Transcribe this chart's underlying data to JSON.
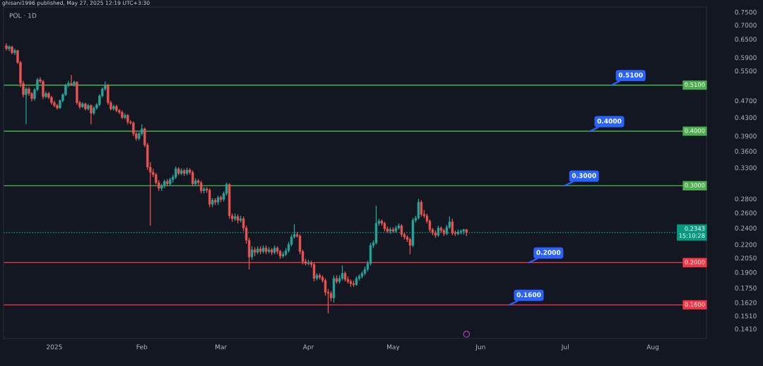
{
  "chart_data": {
    "type": "candlestick",
    "title": "POL · 1D",
    "annotations": [
      "ghisani1996 published, May 27, 2025 12:19 UTC+3:30"
    ],
    "x": [
      "2024-12-15",
      "2024-12-16",
      "2024-12-17",
      "2024-12-18",
      "2024-12-19",
      "2024-12-20",
      "2024-12-21",
      "2024-12-22",
      "2024-12-23",
      "2024-12-24",
      "2024-12-25",
      "2024-12-26",
      "2024-12-27",
      "2024-12-28",
      "2024-12-29",
      "2024-12-30",
      "2024-12-31",
      "2025-01-01",
      "2025-01-02",
      "2025-01-03",
      "2025-01-04",
      "2025-01-05",
      "2025-01-06",
      "2025-01-07",
      "2025-01-08",
      "2025-01-09",
      "2025-01-10",
      "2025-01-11",
      "2025-01-12",
      "2025-01-13",
      "2025-01-14",
      "2025-01-15",
      "2025-01-16",
      "2025-01-17",
      "2025-01-18",
      "2025-01-19",
      "2025-01-20",
      "2025-01-21",
      "2025-01-22",
      "2025-01-23",
      "2025-01-24",
      "2025-01-25",
      "2025-01-26",
      "2025-01-27",
      "2025-01-28",
      "2025-01-29",
      "2025-01-30",
      "2025-01-31",
      "2025-02-01",
      "2025-02-02",
      "2025-02-03",
      "2025-02-04",
      "2025-02-05",
      "2025-02-06",
      "2025-02-07",
      "2025-02-08",
      "2025-02-09",
      "2025-02-10",
      "2025-02-11",
      "2025-02-12",
      "2025-02-13",
      "2025-02-14",
      "2025-02-15",
      "2025-02-16",
      "2025-02-17",
      "2025-02-18",
      "2025-02-19",
      "2025-02-20",
      "2025-02-21",
      "2025-02-22",
      "2025-02-23",
      "2025-02-24",
      "2025-02-25",
      "2025-02-26",
      "2025-02-27",
      "2025-02-28",
      "2025-03-01",
      "2025-03-02",
      "2025-03-03",
      "2025-03-04",
      "2025-03-05",
      "2025-03-06",
      "2025-03-07",
      "2025-03-08",
      "2025-03-09",
      "2025-03-10",
      "2025-03-11",
      "2025-03-12",
      "2025-03-13",
      "2025-03-14",
      "2025-03-15",
      "2025-03-16",
      "2025-03-17",
      "2025-03-18",
      "2025-03-19",
      "2025-03-20",
      "2025-03-21",
      "2025-03-22",
      "2025-03-23",
      "2025-03-24",
      "2025-03-25",
      "2025-03-26",
      "2025-03-27",
      "2025-03-28",
      "2025-03-29",
      "2025-03-30",
      "2025-03-31",
      "2025-04-01",
      "2025-04-02",
      "2025-04-03",
      "2025-04-04",
      "2025-04-05",
      "2025-04-06",
      "2025-04-07",
      "2025-04-08",
      "2025-04-09",
      "2025-04-10",
      "2025-04-11",
      "2025-04-12",
      "2025-04-13",
      "2025-04-14",
      "2025-04-15",
      "2025-04-16",
      "2025-04-17",
      "2025-04-18",
      "2025-04-19",
      "2025-04-20",
      "2025-04-21",
      "2025-04-22",
      "2025-04-23",
      "2025-04-24",
      "2025-04-25",
      "2025-04-26",
      "2025-04-27",
      "2025-04-28",
      "2025-04-29",
      "2025-04-30",
      "2025-05-01",
      "2025-05-02",
      "2025-05-03",
      "2025-05-04",
      "2025-05-05",
      "2025-05-06",
      "2025-05-07",
      "2025-05-08",
      "2025-05-09",
      "2025-05-10",
      "2025-05-11",
      "2025-05-12",
      "2025-05-13",
      "2025-05-14",
      "2025-05-15",
      "2025-05-16",
      "2025-05-17",
      "2025-05-18",
      "2025-05-19",
      "2025-05-20",
      "2025-05-21",
      "2025-05-22",
      "2025-05-23",
      "2025-05-24",
      "2025-05-25",
      "2025-05-26",
      "2025-05-27"
    ],
    "ohlc": [
      [
        0.628,
        0.636,
        0.612,
        0.618
      ],
      [
        0.618,
        0.63,
        0.61,
        0.624
      ],
      [
        0.624,
        0.628,
        0.6,
        0.605
      ],
      [
        0.605,
        0.618,
        0.598,
        0.612
      ],
      [
        0.612,
        0.615,
        0.57,
        0.575
      ],
      [
        0.575,
        0.58,
        0.505,
        0.515
      ],
      [
        0.515,
        0.522,
        0.478,
        0.485
      ],
      [
        0.485,
        0.505,
        0.415,
        0.5
      ],
      [
        0.5,
        0.505,
        0.482,
        0.488
      ],
      [
        0.488,
        0.492,
        0.468,
        0.475
      ],
      [
        0.475,
        0.502,
        0.47,
        0.498
      ],
      [
        0.498,
        0.53,
        0.494,
        0.525
      ],
      [
        0.525,
        0.532,
        0.515,
        0.52
      ],
      [
        0.52,
        0.524,
        0.474,
        0.48
      ],
      [
        0.48,
        0.493,
        0.476,
        0.488
      ],
      [
        0.488,
        0.492,
        0.474,
        0.478
      ],
      [
        0.478,
        0.482,
        0.46,
        0.465
      ],
      [
        0.465,
        0.47,
        0.454,
        0.458
      ],
      [
        0.458,
        0.462,
        0.448,
        0.452
      ],
      [
        0.452,
        0.473,
        0.45,
        0.47
      ],
      [
        0.47,
        0.489,
        0.466,
        0.485
      ],
      [
        0.485,
        0.514,
        0.482,
        0.51
      ],
      [
        0.51,
        0.522,
        0.505,
        0.515
      ],
      [
        0.515,
        0.538,
        0.508,
        0.512
      ],
      [
        0.512,
        0.522,
        0.506,
        0.518
      ],
      [
        0.518,
        0.521,
        0.46,
        0.465
      ],
      [
        0.465,
        0.47,
        0.45,
        0.455
      ],
      [
        0.455,
        0.466,
        0.452,
        0.462
      ],
      [
        0.462,
        0.465,
        0.446,
        0.45
      ],
      [
        0.45,
        0.462,
        0.446,
        0.458
      ],
      [
        0.458,
        0.461,
        0.415,
        0.44
      ],
      [
        0.44,
        0.456,
        0.436,
        0.452
      ],
      [
        0.452,
        0.464,
        0.448,
        0.46
      ],
      [
        0.46,
        0.486,
        0.456,
        0.482
      ],
      [
        0.482,
        0.504,
        0.478,
        0.5
      ],
      [
        0.5,
        0.52,
        0.495,
        0.51
      ],
      [
        0.51,
        0.514,
        0.46,
        0.465
      ],
      [
        0.465,
        0.47,
        0.446,
        0.45
      ],
      [
        0.45,
        0.46,
        0.446,
        0.456
      ],
      [
        0.456,
        0.46,
        0.442,
        0.446
      ],
      [
        0.446,
        0.45,
        0.438,
        0.442
      ],
      [
        0.442,
        0.446,
        0.426,
        0.43
      ],
      [
        0.43,
        0.44,
        0.426,
        0.435
      ],
      [
        0.435,
        0.438,
        0.415,
        0.42
      ],
      [
        0.42,
        0.424,
        0.414,
        0.418
      ],
      [
        0.418,
        0.421,
        0.39,
        0.395
      ],
      [
        0.395,
        0.398,
        0.38,
        0.385
      ],
      [
        0.385,
        0.398,
        0.381,
        0.395
      ],
      [
        0.395,
        0.415,
        0.391,
        0.405
      ],
      [
        0.405,
        0.408,
        0.368,
        0.372
      ],
      [
        0.372,
        0.376,
        0.326,
        0.331
      ],
      [
        0.331,
        0.34,
        0.243,
        0.322
      ],
      [
        0.322,
        0.328,
        0.314,
        0.318
      ],
      [
        0.318,
        0.321,
        0.302,
        0.305
      ],
      [
        0.305,
        0.309,
        0.292,
        0.296
      ],
      [
        0.296,
        0.303,
        0.292,
        0.3
      ],
      [
        0.3,
        0.31,
        0.296,
        0.307
      ],
      [
        0.307,
        0.311,
        0.299,
        0.303
      ],
      [
        0.303,
        0.313,
        0.3,
        0.31
      ],
      [
        0.31,
        0.318,
        0.305,
        0.314
      ],
      [
        0.314,
        0.332,
        0.311,
        0.328
      ],
      [
        0.328,
        0.331,
        0.317,
        0.32
      ],
      [
        0.32,
        0.329,
        0.317,
        0.325
      ],
      [
        0.325,
        0.328,
        0.316,
        0.32
      ],
      [
        0.32,
        0.33,
        0.317,
        0.326
      ],
      [
        0.326,
        0.329,
        0.318,
        0.322
      ],
      [
        0.322,
        0.325,
        0.299,
        0.303
      ],
      [
        0.303,
        0.312,
        0.3,
        0.308
      ],
      [
        0.308,
        0.311,
        0.301,
        0.305
      ],
      [
        0.305,
        0.308,
        0.288,
        0.292
      ],
      [
        0.292,
        0.298,
        0.288,
        0.295
      ],
      [
        0.295,
        0.298,
        0.289,
        0.293
      ],
      [
        0.293,
        0.296,
        0.268,
        0.272
      ],
      [
        0.272,
        0.281,
        0.268,
        0.278
      ],
      [
        0.278,
        0.281,
        0.271,
        0.275
      ],
      [
        0.275,
        0.285,
        0.271,
        0.282
      ],
      [
        0.282,
        0.285,
        0.275,
        0.279
      ],
      [
        0.279,
        0.291,
        0.276,
        0.288
      ],
      [
        0.288,
        0.305,
        0.285,
        0.302
      ],
      [
        0.302,
        0.304,
        0.252,
        0.256
      ],
      [
        0.256,
        0.259,
        0.248,
        0.252
      ],
      [
        0.252,
        0.259,
        0.249,
        0.255
      ],
      [
        0.255,
        0.258,
        0.246,
        0.25
      ],
      [
        0.25,
        0.256,
        0.247,
        0.252
      ],
      [
        0.252,
        0.255,
        0.236,
        0.24
      ],
      [
        0.24,
        0.243,
        0.221,
        0.225
      ],
      [
        0.225,
        0.228,
        0.193,
        0.206
      ],
      [
        0.206,
        0.218,
        0.203,
        0.214
      ],
      [
        0.214,
        0.217,
        0.207,
        0.211
      ],
      [
        0.211,
        0.218,
        0.209,
        0.215
      ],
      [
        0.215,
        0.218,
        0.209,
        0.212
      ],
      [
        0.212,
        0.219,
        0.21,
        0.216
      ],
      [
        0.216,
        0.219,
        0.209,
        0.212
      ],
      [
        0.212,
        0.217,
        0.21,
        0.214
      ],
      [
        0.214,
        0.216,
        0.208,
        0.211
      ],
      [
        0.211,
        0.219,
        0.209,
        0.216
      ],
      [
        0.216,
        0.218,
        0.209,
        0.212
      ],
      [
        0.212,
        0.214,
        0.204,
        0.207
      ],
      [
        0.207,
        0.212,
        0.205,
        0.209
      ],
      [
        0.209,
        0.216,
        0.207,
        0.213
      ],
      [
        0.213,
        0.223,
        0.211,
        0.22
      ],
      [
        0.22,
        0.232,
        0.218,
        0.229
      ],
      [
        0.229,
        0.245,
        0.227,
        0.232
      ],
      [
        0.232,
        0.235,
        0.228,
        0.23
      ],
      [
        0.23,
        0.232,
        0.209,
        0.212
      ],
      [
        0.212,
        0.214,
        0.198,
        0.201
      ],
      [
        0.201,
        0.204,
        0.197,
        0.199
      ],
      [
        0.199,
        0.203,
        0.197,
        0.2
      ],
      [
        0.2,
        0.202,
        0.195,
        0.198
      ],
      [
        0.198,
        0.2,
        0.181,
        0.184
      ],
      [
        0.184,
        0.189,
        0.182,
        0.187
      ],
      [
        0.187,
        0.189,
        0.183,
        0.185
      ],
      [
        0.185,
        0.187,
        0.18,
        0.182
      ],
      [
        0.182,
        0.184,
        0.168,
        0.171
      ],
      [
        0.171,
        0.174,
        0.153,
        0.17
      ],
      [
        0.17,
        0.172,
        0.163,
        0.166
      ],
      [
        0.166,
        0.187,
        0.162,
        0.184
      ],
      [
        0.184,
        0.187,
        0.179,
        0.181
      ],
      [
        0.181,
        0.187,
        0.179,
        0.184
      ],
      [
        0.184,
        0.197,
        0.182,
        0.189
      ],
      [
        0.189,
        0.191,
        0.181,
        0.183
      ],
      [
        0.183,
        0.186,
        0.179,
        0.181
      ],
      [
        0.181,
        0.183,
        0.176,
        0.179
      ],
      [
        0.179,
        0.182,
        0.176,
        0.178
      ],
      [
        0.178,
        0.186,
        0.177,
        0.184
      ],
      [
        0.184,
        0.188,
        0.182,
        0.186
      ],
      [
        0.186,
        0.191,
        0.184,
        0.189
      ],
      [
        0.189,
        0.196,
        0.187,
        0.193
      ],
      [
        0.193,
        0.202,
        0.191,
        0.199
      ],
      [
        0.199,
        0.222,
        0.197,
        0.219
      ],
      [
        0.219,
        0.225,
        0.216,
        0.222
      ],
      [
        0.222,
        0.27,
        0.22,
        0.246
      ],
      [
        0.246,
        0.252,
        0.243,
        0.249
      ],
      [
        0.249,
        0.251,
        0.243,
        0.246
      ],
      [
        0.246,
        0.248,
        0.236,
        0.239
      ],
      [
        0.239,
        0.242,
        0.234,
        0.236
      ],
      [
        0.236,
        0.241,
        0.233,
        0.238
      ],
      [
        0.238,
        0.241,
        0.234,
        0.236
      ],
      [
        0.236,
        0.243,
        0.234,
        0.24
      ],
      [
        0.24,
        0.246,
        0.238,
        0.243
      ],
      [
        0.243,
        0.245,
        0.229,
        0.232
      ],
      [
        0.232,
        0.234,
        0.226,
        0.229
      ],
      [
        0.229,
        0.231,
        0.223,
        0.226
      ],
      [
        0.226,
        0.228,
        0.209,
        0.219
      ],
      [
        0.219,
        0.253,
        0.217,
        0.25
      ],
      [
        0.25,
        0.256,
        0.247,
        0.253
      ],
      [
        0.253,
        0.28,
        0.251,
        0.275
      ],
      [
        0.275,
        0.278,
        0.255,
        0.258
      ],
      [
        0.258,
        0.264,
        0.253,
        0.256
      ],
      [
        0.256,
        0.259,
        0.246,
        0.249
      ],
      [
        0.249,
        0.251,
        0.235,
        0.238
      ],
      [
        0.238,
        0.24,
        0.231,
        0.234
      ],
      [
        0.234,
        0.237,
        0.228,
        0.231
      ],
      [
        0.231,
        0.243,
        0.229,
        0.24
      ],
      [
        0.24,
        0.242,
        0.234,
        0.237
      ],
      [
        0.237,
        0.239,
        0.23,
        0.233
      ],
      [
        0.233,
        0.244,
        0.231,
        0.241
      ],
      [
        0.241,
        0.255,
        0.239,
        0.248
      ],
      [
        0.248,
        0.252,
        0.231,
        0.234
      ],
      [
        0.234,
        0.237,
        0.23,
        0.233
      ],
      [
        0.233,
        0.238,
        0.231,
        0.235
      ],
      [
        0.235,
        0.238,
        0.232,
        0.236
      ],
      [
        0.236,
        0.239,
        0.232,
        0.238
      ],
      [
        0.238,
        0.239,
        0.23,
        0.2343
      ]
    ],
    "colors": [
      "#ef5350",
      "#26a69a",
      "#ef5350",
      "#26a69a",
      "#ef5350",
      "#ef5350",
      "#ef5350",
      "#26a69a",
      "#ef5350",
      "#ef5350",
      "#26a69a",
      "#26a69a",
      "#ef5350",
      "#ef5350",
      "#26a69a",
      "#ef5350",
      "#ef5350",
      "#ef5350",
      "#ef5350",
      "#26a69a",
      "#26a69a",
      "#26a69a",
      "#26a69a",
      "#ef5350",
      "#26a69a",
      "#ef5350",
      "#ef5350",
      "#26a69a",
      "#ef5350",
      "#26a69a",
      "#ef5350",
      "#26a69a",
      "#26a69a",
      "#26a69a",
      "#26a69a",
      "#26a69a",
      "#ef5350",
      "#ef5350",
      "#26a69a",
      "#ef5350",
      "#ef5350",
      "#ef5350",
      "#26a69a",
      "#ef5350",
      "#ef5350",
      "#ef5350",
      "#ef5350",
      "#26a69a",
      "#26a69a",
      "#ef5350",
      "#ef5350",
      "#ef5350",
      "#ef5350",
      "#ef5350",
      "#ef5350",
      "#26a69a",
      "#26a69a",
      "#ef5350",
      "#26a69a",
      "#26a69a",
      "#26a69a",
      "#ef5350",
      "#26a69a",
      "#ef5350",
      "#26a69a",
      "#ef5350",
      "#ef5350",
      "#26a69a",
      "#ef5350",
      "#ef5350",
      "#26a69a",
      "#ef5350",
      "#ef5350",
      "#26a69a",
      "#ef5350",
      "#26a69a",
      "#ef5350",
      "#26a69a",
      "#26a69a",
      "#ef5350",
      "#ef5350",
      "#26a69a",
      "#ef5350",
      "#26a69a",
      "#ef5350",
      "#ef5350",
      "#ef5350",
      "#26a69a",
      "#ef5350",
      "#26a69a",
      "#ef5350",
      "#26a69a",
      "#ef5350",
      "#26a69a",
      "#ef5350",
      "#26a69a",
      "#ef5350",
      "#ef5350",
      "#26a69a",
      "#26a69a",
      "#26a69a",
      "#26a69a",
      "#26a69a",
      "#ef5350",
      "#ef5350",
      "#ef5350",
      "#ef5350",
      "#26a69a",
      "#ef5350",
      "#ef5350",
      "#26a69a",
      "#ef5350",
      "#ef5350",
      "#ef5350",
      "#ef5350",
      "#ef5350",
      "#26a69a",
      "#ef5350",
      "#26a69a",
      "#26a69a",
      "#ef5350",
      "#ef5350",
      "#ef5350",
      "#ef5350",
      "#26a69a",
      "#26a69a",
      "#26a69a",
      "#26a69a",
      "#26a69a",
      "#26a69a",
      "#26a69a",
      "#26a69a",
      "#26a69a",
      "#ef5350",
      "#ef5350",
      "#ef5350",
      "#26a69a",
      "#ef5350",
      "#26a69a",
      "#26a69a",
      "#ef5350",
      "#ef5350",
      "#ef5350",
      "#ef5350",
      "#26a69a",
      "#26a69a",
      "#26a69a",
      "#ef5350",
      "#ef5350",
      "#ef5350",
      "#ef5350",
      "#ef5350",
      "#ef5350",
      "#26a69a",
      "#ef5350",
      "#ef5350",
      "#26a69a",
      "#26a69a",
      "#ef5350",
      "#ef5350",
      "#26a69a",
      "#26a69a",
      "#26a69a",
      "#ef5350"
    ],
    "xlim": [
      "2024-12-14",
      "2025-08-20"
    ],
    "xticks": [
      {
        "value": "2025-01-01",
        "label": "2025"
      },
      {
        "value": "2025-02-01",
        "label": "Feb"
      },
      {
        "value": "2025-03-01",
        "label": "Mar"
      },
      {
        "value": "2025-04-01",
        "label": "Apr"
      },
      {
        "value": "2025-05-01",
        "label": "May"
      },
      {
        "value": "2025-06-01",
        "label": "Jun"
      },
      {
        "value": "2025-07-01",
        "label": "Jul"
      },
      {
        "value": "2025-08-01",
        "label": "Aug"
      }
    ],
    "log": true,
    "ylim": [
      0.134,
      0.77
    ],
    "yticks": [
      {
        "value": 0.141,
        "label": "0.1410"
      },
      {
        "value": 0.151,
        "label": "0.1510"
      },
      {
        "value": 0.162,
        "label": "0.1620"
      },
      {
        "value": 0.175,
        "label": "0.1750"
      },
      {
        "value": 0.19,
        "label": "0.1900"
      },
      {
        "value": 0.205,
        "label": "0.2050"
      },
      {
        "value": 0.22,
        "label": "0.2200"
      },
      {
        "value": 0.24,
        "label": "0.2400"
      },
      {
        "value": 0.26,
        "label": "0.2600"
      },
      {
        "value": 0.28,
        "label": "0.2800"
      },
      {
        "value": 0.33,
        "label": "0.3300"
      },
      {
        "value": 0.36,
        "label": "0.3600"
      },
      {
        "value": 0.39,
        "label": "0.3900"
      },
      {
        "value": 0.43,
        "label": "0.4300"
      },
      {
        "value": 0.47,
        "label": "0.4700"
      },
      {
        "value": 0.55,
        "label": "0.5500"
      },
      {
        "value": 0.59,
        "label": "0.5900"
      },
      {
        "value": 0.65,
        "label": "0.6500"
      },
      {
        "value": 0.7,
        "label": "0.7000"
      },
      {
        "value": 0.75,
        "label": "0.7500"
      }
    ],
    "ref_lines": [
      {
        "axis": "y",
        "value": 0.51,
        "label": "0.5100",
        "color": "#4caf50",
        "line_style": "solid"
      },
      {
        "axis": "y",
        "value": 0.4,
        "label": "0.4000",
        "color": "#4caf50",
        "line_style": "solid"
      },
      {
        "axis": "y",
        "value": 0.3,
        "label": "0.3000",
        "color": "#4caf50",
        "line_style": "solid"
      },
      {
        "axis": "y",
        "value": 0.2343,
        "label": "0.2343\n15:10:28",
        "color": "#089981",
        "line_style": "dotted"
      },
      {
        "axis": "y",
        "value": 0.2,
        "label": "0.2000",
        "color": "#f23645",
        "line_style": "solid"
      },
      {
        "axis": "y",
        "value": 0.16,
        "label": "0.1600",
        "color": "#f23645",
        "line_style": "solid"
      }
    ]
  }
}
